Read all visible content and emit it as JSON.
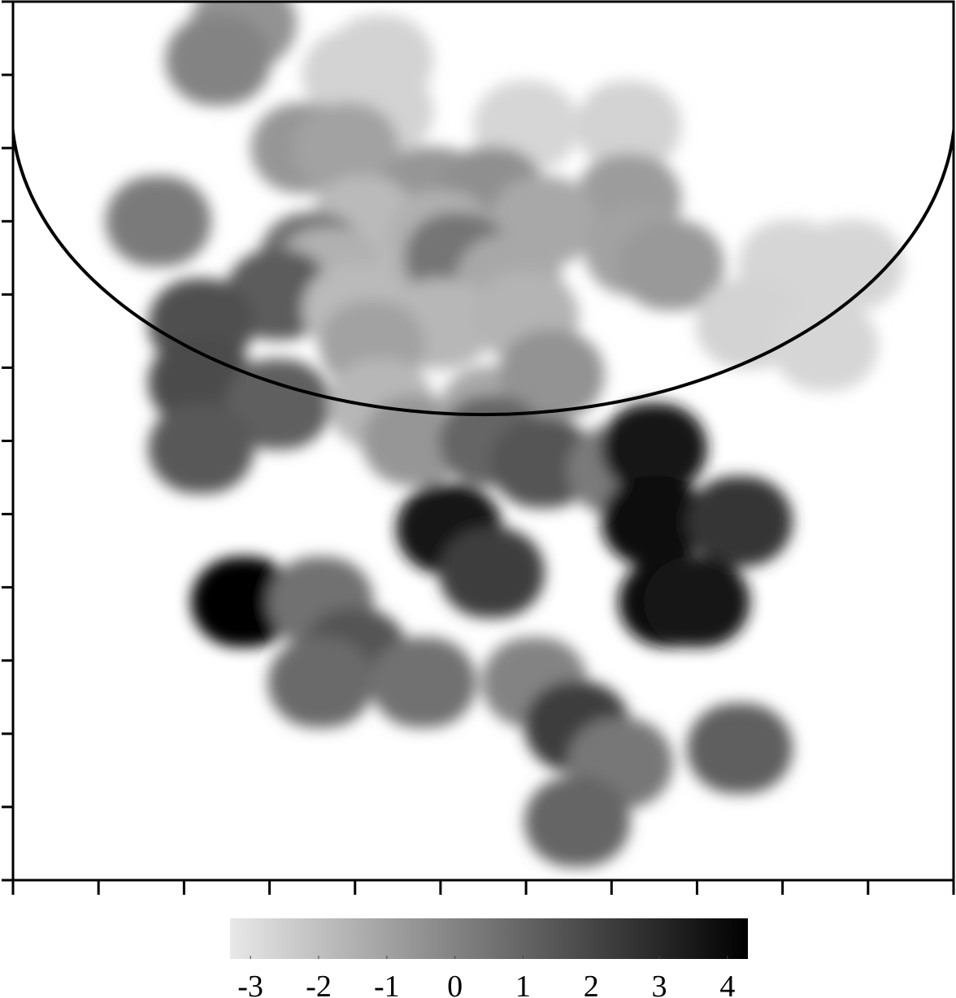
{
  "chart_data": {
    "type": "heatmap",
    "title": "",
    "xlabel": "",
    "ylabel": "",
    "x_ticks_count": 12,
    "y_ticks_count": 13,
    "grid": false,
    "colorscale": {
      "colors": [
        "#e8e8e8",
        "#000000"
      ],
      "min": -3.3,
      "max": 4.3,
      "tick_labels": [
        "-3",
        "-2",
        "-1",
        "0",
        "1",
        "2",
        "3",
        "4"
      ],
      "tick_values": [
        -3,
        -2,
        -1,
        0,
        1,
        2,
        3,
        4
      ]
    },
    "boundary_curve": {
      "shape": "lower semicircle",
      "color": "#000000"
    },
    "blobs": [
      {
        "x": 2.7,
        "y": 11.7,
        "v": -0.5
      },
      {
        "x": 2.4,
        "y": 11.2,
        "v": 0.0
      },
      {
        "x": 4.3,
        "y": 11.2,
        "v": -2.6
      },
      {
        "x": 4.3,
        "y": 10.5,
        "v": -2.6
      },
      {
        "x": 4.0,
        "y": 11.0,
        "v": -2.6
      },
      {
        "x": 6.0,
        "y": 10.3,
        "v": -2.7
      },
      {
        "x": 7.2,
        "y": 10.3,
        "v": -2.6
      },
      {
        "x": 3.4,
        "y": 10.0,
        "v": -0.6
      },
      {
        "x": 3.9,
        "y": 10.0,
        "v": -1.0
      },
      {
        "x": 4.9,
        "y": 9.4,
        "v": -0.6
      },
      {
        "x": 5.6,
        "y": 9.4,
        "v": -0.4
      },
      {
        "x": 7.2,
        "y": 9.3,
        "v": -0.8
      },
      {
        "x": 1.7,
        "y": 9.0,
        "v": 0.3
      },
      {
        "x": 4.1,
        "y": 9.0,
        "v": -1.8
      },
      {
        "x": 5.0,
        "y": 8.8,
        "v": -1.5
      },
      {
        "x": 6.2,
        "y": 9.0,
        "v": -1.2
      },
      {
        "x": 7.3,
        "y": 8.6,
        "v": -1.0
      },
      {
        "x": 3.5,
        "y": 8.5,
        "v": 0.6
      },
      {
        "x": 3.7,
        "y": 8.3,
        "v": -1.5
      },
      {
        "x": 4.9,
        "y": 8.1,
        "v": -1.6
      },
      {
        "x": 5.2,
        "y": 8.5,
        "v": 0.5
      },
      {
        "x": 5.8,
        "y": 8.2,
        "v": -1.2
      },
      {
        "x": 7.7,
        "y": 8.4,
        "v": -0.7
      },
      {
        "x": 9.1,
        "y": 8.4,
        "v": -2.7
      },
      {
        "x": 9.8,
        "y": 8.4,
        "v": -2.7
      },
      {
        "x": 3.1,
        "y": 8.0,
        "v": 1.3
      },
      {
        "x": 4.0,
        "y": 7.8,
        "v": -1.8
      },
      {
        "x": 5.0,
        "y": 7.6,
        "v": -1.7
      },
      {
        "x": 6.0,
        "y": 7.7,
        "v": -1.6
      },
      {
        "x": 8.6,
        "y": 7.6,
        "v": -2.6
      },
      {
        "x": 9.5,
        "y": 7.3,
        "v": -2.7
      },
      {
        "x": 2.2,
        "y": 7.6,
        "v": 1.7
      },
      {
        "x": 2.2,
        "y": 6.8,
        "v": 1.8
      },
      {
        "x": 3.1,
        "y": 6.5,
        "v": 1.2
      },
      {
        "x": 2.2,
        "y": 5.9,
        "v": 1.4
      },
      {
        "x": 4.2,
        "y": 7.3,
        "v": -1.0
      },
      {
        "x": 4.3,
        "y": 6.5,
        "v": -1.7
      },
      {
        "x": 4.7,
        "y": 6.0,
        "v": -0.6
      },
      {
        "x": 5.6,
        "y": 6.4,
        "v": -1.2
      },
      {
        "x": 6.3,
        "y": 6.9,
        "v": -0.5
      },
      {
        "x": 5.6,
        "y": 6.0,
        "v": 1.0
      },
      {
        "x": 6.2,
        "y": 5.7,
        "v": 1.5
      },
      {
        "x": 7.1,
        "y": 5.6,
        "v": 0.3
      },
      {
        "x": 7.5,
        "y": 5.9,
        "v": 3.5
      },
      {
        "x": 7.5,
        "y": 4.9,
        "v": 3.8
      },
      {
        "x": 8.5,
        "y": 4.9,
        "v": 2.6
      },
      {
        "x": 5.1,
        "y": 4.8,
        "v": 3.6
      },
      {
        "x": 5.6,
        "y": 4.2,
        "v": 2.3
      },
      {
        "x": 2.7,
        "y": 3.8,
        "v": 4.2
      },
      {
        "x": 3.6,
        "y": 3.8,
        "v": 0.6
      },
      {
        "x": 4.0,
        "y": 3.1,
        "v": 1.5
      },
      {
        "x": 3.6,
        "y": 2.7,
        "v": 0.8
      },
      {
        "x": 4.8,
        "y": 2.7,
        "v": 0.6
      },
      {
        "x": 7.7,
        "y": 3.8,
        "v": 3.8
      },
      {
        "x": 8.0,
        "y": 3.8,
        "v": 3.6
      },
      {
        "x": 6.1,
        "y": 2.7,
        "v": 0.0
      },
      {
        "x": 6.6,
        "y": 2.1,
        "v": 2.3
      },
      {
        "x": 7.1,
        "y": 1.6,
        "v": 0.4
      },
      {
        "x": 8.5,
        "y": 1.8,
        "v": 1.2
      },
      {
        "x": 6.6,
        "y": 0.8,
        "v": 1.0
      }
    ]
  }
}
